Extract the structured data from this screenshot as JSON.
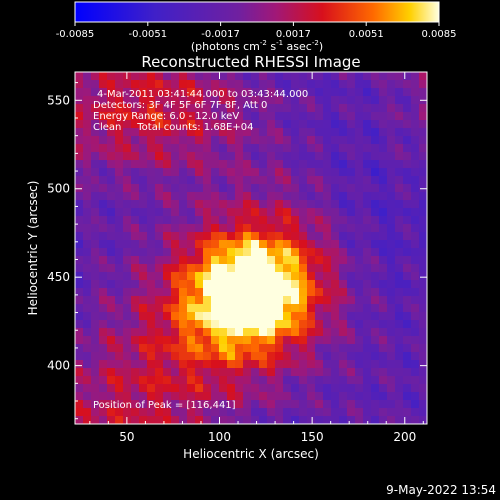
{
  "chart_data": {
    "type": "heatmap",
    "title": "Reconstructed RHESSI Image",
    "xlabel": "Heliocentric X (arcsec)",
    "ylabel": "Heliocentric Y (arcsec)",
    "xlim": [
      22,
      212
    ],
    "ylim": [
      367,
      566
    ],
    "xticks": [
      50,
      100,
      150,
      200
    ],
    "yticks": [
      400,
      450,
      500,
      550
    ],
    "colorbar": {
      "range": [
        -0.0085,
        0.0085
      ],
      "ticks": [
        "-0.0085",
        "-0.0051",
        "-0.0017",
        "0.0017",
        "0.0051",
        "0.0085"
      ],
      "unit_text": "(photons cm",
      "unit_sup1": "-2",
      "unit_mid": " s",
      "unit_sup2": "-1",
      "unit_end": " asec",
      "unit_sup3": "-2",
      "unit_close": ")"
    },
    "annotations": [
      "4-Mar-2011 03:41:44.000 to 03:43:44.000",
      "Detectors: 3F 4F 5F 6F 7F 8F, Att 0",
      "Energy Range: 6.0 - 12.0 keV",
      "Clean     Total counts: 1.68E+04"
    ],
    "peak_label": "Position of Peak = [116,441]",
    "peak": [
      116,
      441
    ],
    "date_stamp": "9-May-2022 13:54"
  }
}
